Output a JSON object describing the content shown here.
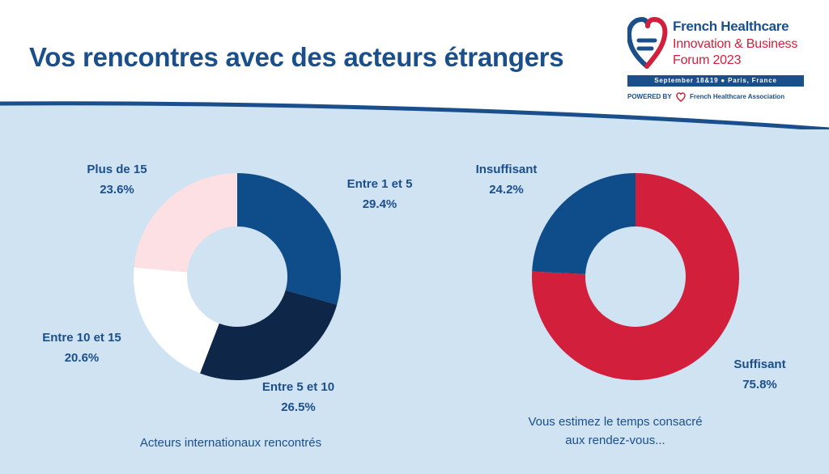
{
  "header": {
    "title": "Vos rencontres avec des acteurs étrangers",
    "logo": {
      "name": "French Healthcare",
      "line2": "Innovation & Business",
      "line3": "Forum 2023",
      "date_place": "September 18&19  ●  Paris, France",
      "powered_by": "POWERED BY",
      "association": "French Healthcare Association"
    }
  },
  "colors": {
    "primary_blue": "#1b4f8c",
    "navy": "#0e2748",
    "light_pink": "#fde0e3",
    "white": "#ffffff",
    "red": "#d21f3c",
    "background": "#cfe3f3"
  },
  "chart_data": [
    {
      "type": "pie",
      "title": "",
      "caption": "Acteurs internationaux rencontrés",
      "slices": [
        {
          "label": "Entre 1 et 5",
          "value": 29.4,
          "display": "29.4%",
          "color": "#0f4d8a"
        },
        {
          "label": "Entre 5 et 10",
          "value": 26.5,
          "display": "26.5%",
          "color": "#0e2748"
        },
        {
          "label": "Entre 10 et 15",
          "value": 20.6,
          "display": "20.6%",
          "color": "#ffffff"
        },
        {
          "label": "Plus de 15",
          "value": 23.6,
          "display": "23.6%",
          "color": "#fde0e3"
        }
      ]
    },
    {
      "type": "pie",
      "title": "",
      "caption_line1": "Vous estimez le temps consacré",
      "caption_line2": "aux rendez-vous...",
      "slices": [
        {
          "label": "Suffisant",
          "value": 75.8,
          "display": "75.8%",
          "color": "#d21f3c"
        },
        {
          "label": "Insuffisant",
          "value": 24.2,
          "display": "24.2%",
          "color": "#0f4d8a"
        }
      ]
    }
  ]
}
